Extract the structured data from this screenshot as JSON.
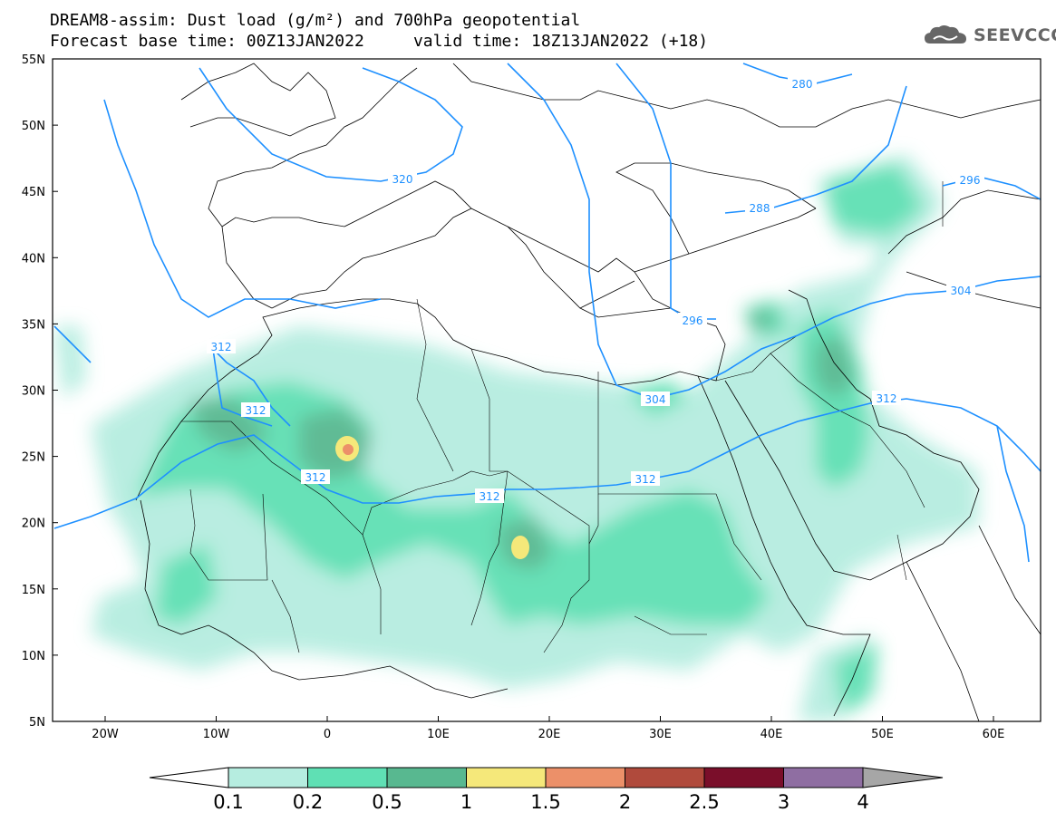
{
  "header": {
    "title_line1": "DREAM8-assim: Dust load (g/m²) and 700hPa geopotential",
    "title_line2": "Forecast base time: 00Z13JAN2022     valid time: 18Z13JAN2022 (+18)",
    "logo_text": "SEEVCCC"
  },
  "map": {
    "lat_labels": [
      "55N",
      "50N",
      "45N",
      "40N",
      "35N",
      "30N",
      "25N",
      "20N",
      "15N",
      "10N",
      "5N"
    ],
    "lon_labels": [
      "20W",
      "10W",
      "0",
      "10E",
      "20E",
      "30E",
      "40E",
      "50E",
      "60E"
    ],
    "contour_labels": [
      "280",
      "288",
      "296",
      "296",
      "304",
      "304",
      "312",
      "312",
      "312",
      "312",
      "312",
      "312",
      "320"
    ],
    "colors": {
      "border": "#000000",
      "contour": "#1e90ff",
      "coast": "#000000"
    }
  },
  "colorbar": {
    "ticks": [
      "0.1",
      "0.2",
      "0.5",
      "1",
      "1.5",
      "2",
      "2.5",
      "3",
      "4"
    ],
    "colors": [
      "#b6ede0",
      "#5fe0b4",
      "#58b890",
      "#f5e87a",
      "#ec9069",
      "#b04a3c",
      "#7a0e2a",
      "#8f6ea2",
      "#a6a6a6"
    ]
  }
}
